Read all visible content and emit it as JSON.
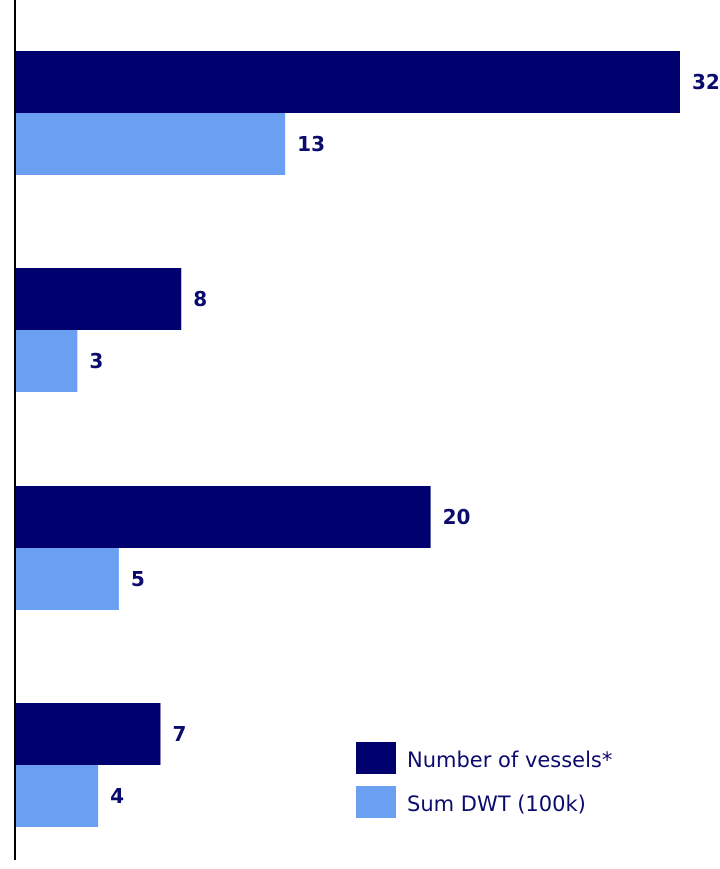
{
  "chart_data": {
    "type": "bar",
    "orientation": "horizontal",
    "categories": [
      "",
      "",
      "",
      ""
    ],
    "series": [
      {
        "name": "Number of vessels*",
        "color": "#00006e",
        "values": [
          32,
          8,
          20,
          7
        ]
      },
      {
        "name": "Sum DWT (100k)",
        "color": "#6a9ff2",
        "values": [
          13,
          3,
          5,
          4
        ]
      }
    ],
    "xlim": [
      0,
      32
    ],
    "grid": false,
    "legend_position": "bottom-right",
    "data_labels": true
  }
}
